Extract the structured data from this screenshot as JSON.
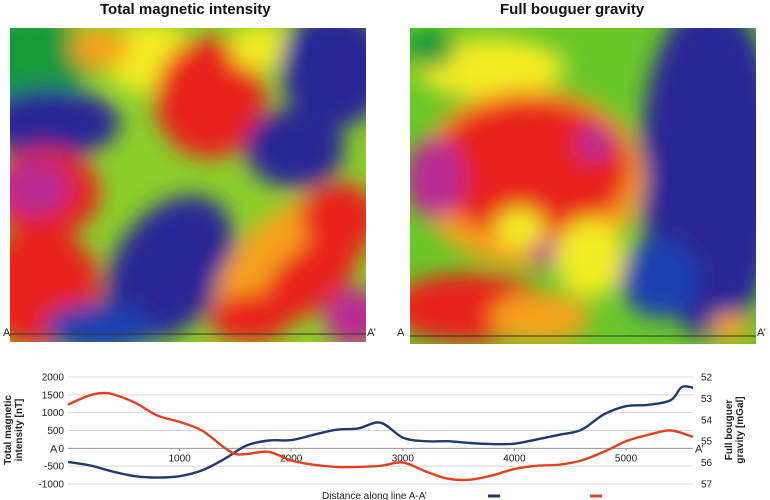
{
  "maps": [
    {
      "title": "Total magnetic intensity",
      "profile_start": "A",
      "profile_end": "A’"
    },
    {
      "title": "Full bouguer gravity",
      "profile_start": "A",
      "profile_end": "A’"
    }
  ],
  "colors": {
    "magnetic_line": "#1f3b6e",
    "gravity_line": "#e2401f",
    "grid": "#d8d8d8",
    "map_scale": [
      "#2a2896",
      "#1f3fb0",
      "#149a3a",
      "#6ac72a",
      "#f2ec22",
      "#f6a21e",
      "#e8231e",
      "#b82a92"
    ]
  },
  "chart_data": {
    "type": "line",
    "x_ticks": [
      "1000",
      "2000",
      "3000",
      "4000",
      "5000"
    ],
    "xlim": [
      0,
      5600
    ],
    "ylabel_left": "Total magnetic intensity [nT]",
    "ylabel_right": "Full bouguer gravity [mGal]",
    "y_left_ticks": [
      "2000",
      "1500",
      "1000",
      "500",
      "0",
      "-500",
      "-1000"
    ],
    "y_left_lim": [
      -1000,
      2000
    ],
    "y_right_ticks": [
      "52",
      "53",
      "54",
      "55",
      "56",
      "57"
    ],
    "y_right_lim": [
      52,
      57
    ],
    "marker_start": "A",
    "marker_end": "A’",
    "grid": true,
    "legend_caption": "Distance along line A-A’",
    "series": [
      {
        "axis": "left",
        "x": [
          0,
          200,
          400,
          600,
          800,
          1000,
          1200,
          1400,
          1600,
          1800,
          2000,
          2200,
          2400,
          2600,
          2800,
          3000,
          3200,
          3400,
          3600,
          3800,
          4000,
          4200,
          4400,
          4600,
          4800,
          5000,
          5200,
          5400,
          5500,
          5600
        ],
        "y": [
          -380,
          -480,
          -650,
          -780,
          -820,
          -780,
          -620,
          -300,
          80,
          220,
          230,
          380,
          520,
          560,
          720,
          300,
          200,
          200,
          150,
          120,
          130,
          250,
          380,
          520,
          950,
          1180,
          1220,
          1350,
          1720,
          1700
        ]
      },
      {
        "axis": "right",
        "x": [
          0,
          100,
          200,
          300,
          400,
          600,
          800,
          1000,
          1200,
          1400,
          1500,
          1600,
          1800,
          2000,
          2200,
          2400,
          2600,
          2800,
          3000,
          3200,
          3400,
          3600,
          3800,
          4000,
          4200,
          4400,
          4600,
          4800,
          5000,
          5200,
          5400,
          5600
        ],
        "y": [
          53.3,
          53.05,
          52.85,
          52.75,
          52.8,
          53.2,
          53.8,
          54.1,
          54.5,
          55.3,
          55.6,
          55.6,
          55.5,
          55.9,
          56.1,
          56.2,
          56.2,
          56.15,
          56.0,
          56.4,
          56.75,
          56.8,
          56.6,
          56.3,
          56.15,
          56.1,
          55.9,
          55.5,
          55.0,
          54.7,
          54.5,
          54.8
        ]
      }
    ]
  }
}
